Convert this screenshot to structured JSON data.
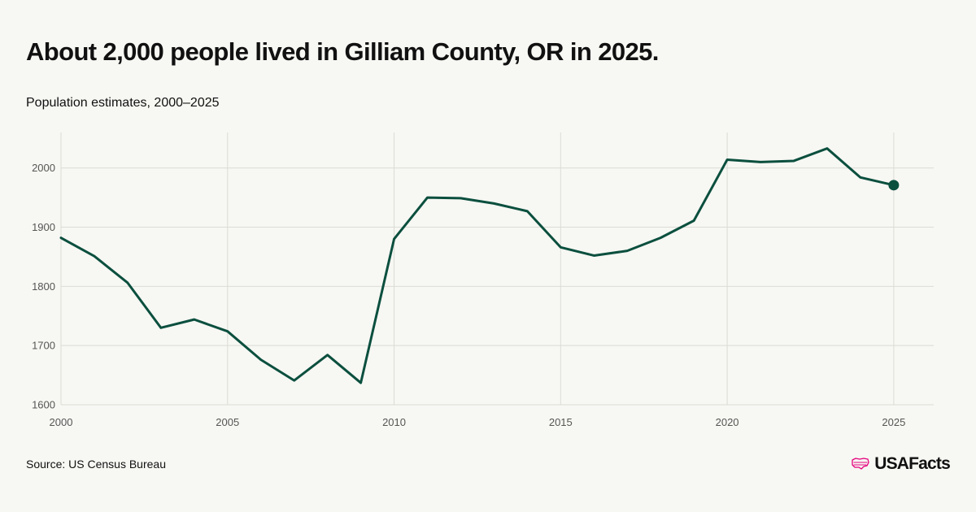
{
  "title": "About 2,000 people lived in Gilliam County, OR in 2025.",
  "subtitle": "Population estimates, 2000–2025",
  "source": "Source: US Census Bureau",
  "logo": {
    "text": "USAFacts",
    "icon": "us-map-icon",
    "icon_color": "#e4007c"
  },
  "colors": {
    "line": "#0b4f3e",
    "grid": "#dcdcd6",
    "background": "#f7f7f3"
  },
  "chart_data": {
    "type": "line",
    "x": [
      2000,
      2001,
      2002,
      2003,
      2004,
      2005,
      2006,
      2007,
      2008,
      2009,
      2010,
      2011,
      2012,
      2013,
      2014,
      2015,
      2016,
      2017,
      2018,
      2019,
      2020,
      2021,
      2022,
      2023,
      2024,
      2025
    ],
    "series": [
      {
        "values": [
          1882,
          1851,
          1806,
          1730,
          1744,
          1724,
          1676,
          1641,
          1684,
          1637,
          1880,
          1950,
          1949,
          1940,
          1927,
          1866,
          1852,
          1860,
          1882,
          1911,
          2014,
          2010,
          2012,
          2033,
          1984,
          1971
        ]
      }
    ],
    "xticks": [
      "2000",
      "2005",
      "2010",
      "2015",
      "2020",
      "2025"
    ],
    "yticks": [
      "1600",
      "1700",
      "1800",
      "1900",
      "2000"
    ],
    "xlim": [
      2000,
      2026.2
    ],
    "ylim": [
      1600,
      2060
    ],
    "grid": true,
    "highlight_last_point": true
  }
}
